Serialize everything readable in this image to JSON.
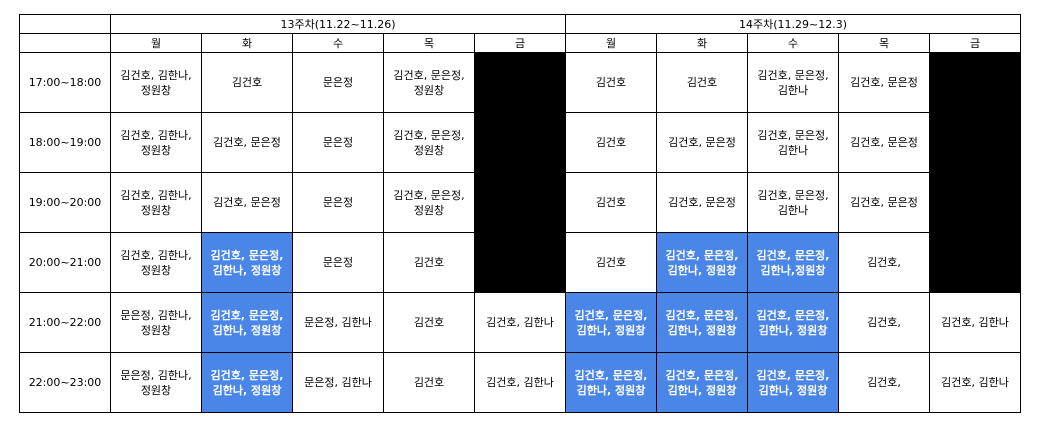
{
  "weeks": [
    {
      "label": "13주차(11.22~11.26)"
    },
    {
      "label": "14주차(11.29~12.3)"
    }
  ],
  "days": [
    "월",
    "화",
    "수",
    "목",
    "금",
    "월",
    "화",
    "수",
    "목",
    "금"
  ],
  "colors": {
    "highlight": "#4a86e8",
    "blocked": "#000000"
  },
  "rows": [
    {
      "time": "17:00~18:00",
      "cells": [
        {
          "text": "김건호, 김한나, 정원창",
          "style": "normal"
        },
        {
          "text": "김건호",
          "style": "normal"
        },
        {
          "text": "문은정",
          "style": "normal"
        },
        {
          "text": "김건호, 문은정, 정원창",
          "style": "normal"
        },
        {
          "text": "",
          "style": "black"
        },
        {
          "text": "김건호",
          "style": "normal"
        },
        {
          "text": "김건호",
          "style": "normal"
        },
        {
          "text": "김건호, 문은정, 김한나",
          "style": "normal"
        },
        {
          "text": "김건호, 문은정",
          "style": "normal"
        },
        {
          "text": "",
          "style": "black"
        }
      ]
    },
    {
      "time": "18:00~19:00",
      "cells": [
        {
          "text": "김건호, 김한나, 정원창",
          "style": "normal"
        },
        {
          "text": "김건호, 문은정",
          "style": "normal"
        },
        {
          "text": "문은정",
          "style": "normal"
        },
        {
          "text": "김건호, 문은정, 정원창",
          "style": "normal"
        },
        {
          "text": "",
          "style": "black"
        },
        {
          "text": "김건호",
          "style": "normal"
        },
        {
          "text": "김건호, 문은정",
          "style": "normal"
        },
        {
          "text": "김건호, 문은정, 김한나",
          "style": "normal"
        },
        {
          "text": "김건호, 문은정",
          "style": "normal"
        },
        {
          "text": "",
          "style": "black"
        }
      ]
    },
    {
      "time": "19:00~20:00",
      "cells": [
        {
          "text": "김건호, 김한나, 정원창",
          "style": "normal"
        },
        {
          "text": "김건호, 문은정",
          "style": "normal"
        },
        {
          "text": "문은정",
          "style": "normal"
        },
        {
          "text": "김건호, 문은정, 정원창",
          "style": "normal"
        },
        {
          "text": "",
          "style": "black"
        },
        {
          "text": "김건호",
          "style": "normal"
        },
        {
          "text": "김건호, 문은정",
          "style": "normal"
        },
        {
          "text": "김건호, 문은정, 김한나",
          "style": "normal"
        },
        {
          "text": "김건호, 문은정",
          "style": "normal"
        },
        {
          "text": "",
          "style": "black"
        }
      ]
    },
    {
      "time": "20:00~21:00",
      "cells": [
        {
          "text": "김건호, 김한나, 정원창",
          "style": "normal"
        },
        {
          "text": "김건호, 문은정, 김한나, 정원창",
          "style": "blue"
        },
        {
          "text": "문은정",
          "style": "normal"
        },
        {
          "text": "김건호",
          "style": "normal"
        },
        {
          "text": "",
          "style": "black"
        },
        {
          "text": "김건호",
          "style": "normal"
        },
        {
          "text": "김건호, 문은정, 김한나, 정원창",
          "style": "blue"
        },
        {
          "text": "김건호, 문은정, 김한나,정원창",
          "style": "blue"
        },
        {
          "text": "김건호,",
          "style": "normal"
        },
        {
          "text": "",
          "style": "black"
        }
      ]
    },
    {
      "time": "21:00~22:00",
      "cells": [
        {
          "text": "문은정, 김한나, 정원창",
          "style": "normal"
        },
        {
          "text": "김건호, 문은정, 김한나, 정원창",
          "style": "blue"
        },
        {
          "text": "문은정, 김한나",
          "style": "normal"
        },
        {
          "text": "김건호",
          "style": "normal"
        },
        {
          "text": "김건호, 김한나",
          "style": "normal"
        },
        {
          "text": "김건호, 문은정, 김한나, 정원창",
          "style": "blue"
        },
        {
          "text": "김건호, 문은정, 김한나, 정원창",
          "style": "blue"
        },
        {
          "text": "김건호, 문은정, 김한나, 정원창",
          "style": "blue"
        },
        {
          "text": "김건호,",
          "style": "normal"
        },
        {
          "text": "김건호, 김한나",
          "style": "normal"
        }
      ]
    },
    {
      "time": "22:00~23:00",
      "cells": [
        {
          "text": "문은정, 김한나, 정원창",
          "style": "normal"
        },
        {
          "text": "김건호, 문은정, 김한나, 정원창",
          "style": "blue"
        },
        {
          "text": "문은정, 김한나",
          "style": "normal"
        },
        {
          "text": "김건호",
          "style": "normal"
        },
        {
          "text": "김건호, 김한나",
          "style": "normal"
        },
        {
          "text": "김건호, 문은정, 김한나, 정원창",
          "style": "blue"
        },
        {
          "text": "김건호, 문은정, 김한나, 정원창",
          "style": "blue"
        },
        {
          "text": "김건호, 문은정, 김한나, 정원창",
          "style": "blue"
        },
        {
          "text": "김건호,",
          "style": "normal"
        },
        {
          "text": "김건호, 김한나",
          "style": "normal"
        }
      ]
    }
  ]
}
